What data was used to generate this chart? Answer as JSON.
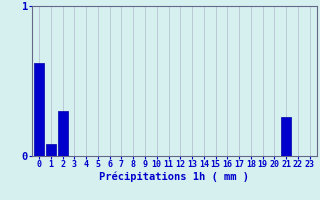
{
  "hours": [
    0,
    1,
    2,
    3,
    4,
    5,
    6,
    7,
    8,
    9,
    10,
    11,
    12,
    13,
    14,
    15,
    16,
    17,
    18,
    19,
    20,
    21,
    22,
    23
  ],
  "values": [
    0.62,
    0.08,
    0.3,
    0.0,
    0.0,
    0.0,
    0.0,
    0.0,
    0.0,
    0.0,
    0.0,
    0.0,
    0.0,
    0.0,
    0.0,
    0.0,
    0.0,
    0.0,
    0.0,
    0.0,
    0.0,
    0.26,
    0.0,
    0.0
  ],
  "bar_color": "#0000cc",
  "bar_edge_color": "#0000aa",
  "background_color": "#d6f0f0",
  "grid_color": "#b0b8cc",
  "xlabel": "Précipitations 1h ( mm )",
  "xlabel_color": "#0000cc",
  "tick_color": "#0000cc",
  "axis_color": "#666688",
  "ylim": [
    0,
    1.0
  ],
  "yticks": [
    0,
    1
  ],
  "xlabel_fontsize": 7.5,
  "tick_fontsize": 6.0
}
